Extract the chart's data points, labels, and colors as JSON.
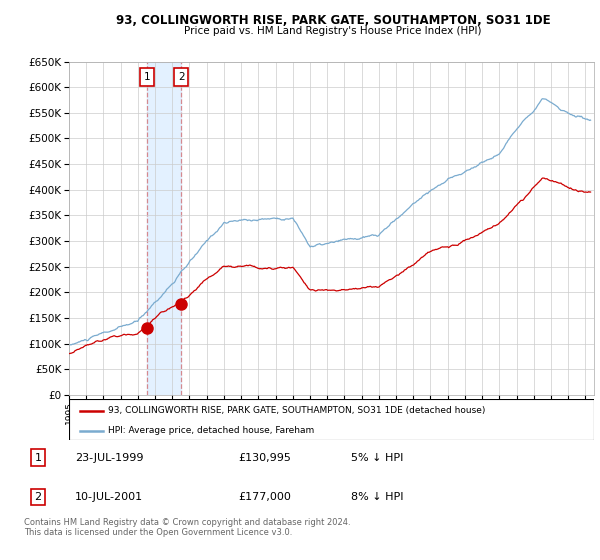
{
  "title": "93, COLLINGWORTH RISE, PARK GATE, SOUTHAMPTON, SO31 1DE",
  "subtitle": "Price paid vs. HM Land Registry's House Price Index (HPI)",
  "ylim": [
    0,
    650000
  ],
  "yticks": [
    0,
    50000,
    100000,
    150000,
    200000,
    250000,
    300000,
    350000,
    400000,
    450000,
    500000,
    550000,
    600000,
    650000
  ],
  "xlim_start": 1995.0,
  "xlim_end": 2025.5,
  "sales": [
    {
      "date_label": "23-JUL-1999",
      "date_num": 1999.55,
      "price": 130995,
      "pct": "5%",
      "direction": "↓",
      "label": "1"
    },
    {
      "date_label": "10-JUL-2001",
      "date_num": 2001.52,
      "price": 177000,
      "pct": "8%",
      "direction": "↓",
      "label": "2"
    }
  ],
  "legend_line1": "93, COLLINGWORTH RISE, PARK GATE, SOUTHAMPTON, SO31 1DE (detached house)",
  "legend_line2": "HPI: Average price, detached house, Fareham",
  "footer": "Contains HM Land Registry data © Crown copyright and database right 2024.\nThis data is licensed under the Open Government Licence v3.0.",
  "line_color_red": "#cc0000",
  "line_color_blue": "#7aabcf",
  "shade_color": "#ddeeff",
  "background_color": "#ffffff",
  "grid_color": "#cccccc"
}
